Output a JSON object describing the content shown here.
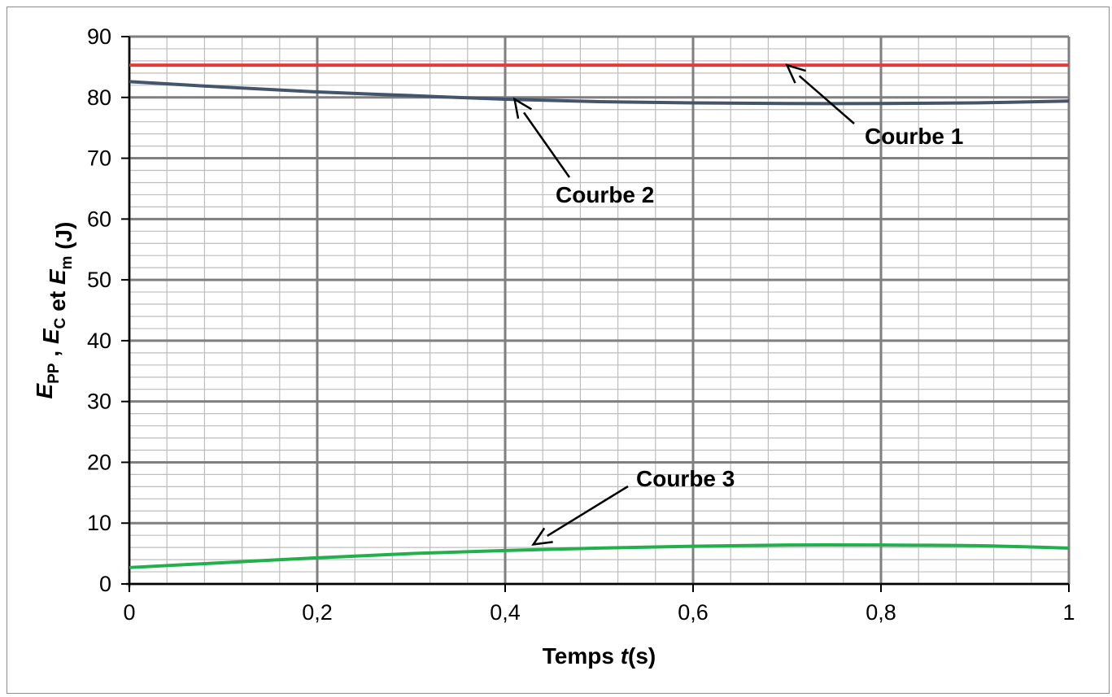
{
  "chart_data": {
    "type": "line",
    "xlabel": {
      "pre": "Temps ",
      "italic": "t",
      "post": "(s)"
    },
    "ylabel": {
      "parts": [
        {
          "main": "E",
          "sub": "PP"
        },
        {
          "sep": " , "
        },
        {
          "main": "E",
          "sub": "C"
        },
        {
          "sep": " et "
        },
        {
          "main": "E",
          "sub": "m"
        },
        {
          "sep": " (J)"
        }
      ]
    },
    "xlim": [
      0,
      1
    ],
    "ylim": [
      0,
      90
    ],
    "x_ticks": [
      0,
      0.2,
      0.4,
      0.6,
      0.8,
      1
    ],
    "x_tick_labels": [
      "0",
      "0,2",
      "0,4",
      "0,6",
      "0,8",
      "1"
    ],
    "y_ticks": [
      0,
      10,
      20,
      30,
      40,
      50,
      60,
      70,
      80,
      90
    ],
    "y_tick_labels": [
      "0",
      "10",
      "20",
      "30",
      "40",
      "50",
      "60",
      "70",
      "80",
      "90"
    ],
    "grid": true,
    "minor_x_step": 0.04,
    "minor_y_step": 2,
    "series": [
      {
        "name": "Courbe 1",
        "color": "#e8383b",
        "x": [
          0,
          0.2,
          0.4,
          0.6,
          0.8,
          1
        ],
        "y": [
          85.3,
          85.3,
          85.3,
          85.3,
          85.3,
          85.3
        ]
      },
      {
        "name": "Courbe 2",
        "color": "#44546a",
        "x": [
          0,
          0.1,
          0.2,
          0.3,
          0.4,
          0.5,
          0.6,
          0.7,
          0.8,
          0.9,
          1
        ],
        "y": [
          82.6,
          81.7,
          80.9,
          80.3,
          79.7,
          79.3,
          79.1,
          79.0,
          79.0,
          79.1,
          79.4
        ]
      },
      {
        "name": "Courbe 3",
        "color": "#21b04b",
        "x": [
          0,
          0.1,
          0.2,
          0.3,
          0.4,
          0.5,
          0.6,
          0.7,
          0.8,
          0.9,
          1
        ],
        "y": [
          2.7,
          3.5,
          4.3,
          5.0,
          5.5,
          5.9,
          6.2,
          6.4,
          6.4,
          6.3,
          5.9
        ]
      }
    ],
    "annotations": [
      {
        "text": "Courbe 1",
        "target_x": 0.7,
        "target_y": 85.3
      },
      {
        "text": "Courbe 2",
        "target_x": 0.41,
        "target_y": 79.7
      },
      {
        "text": "Courbe 3",
        "target_x": 0.43,
        "target_y": 6.5
      }
    ]
  }
}
